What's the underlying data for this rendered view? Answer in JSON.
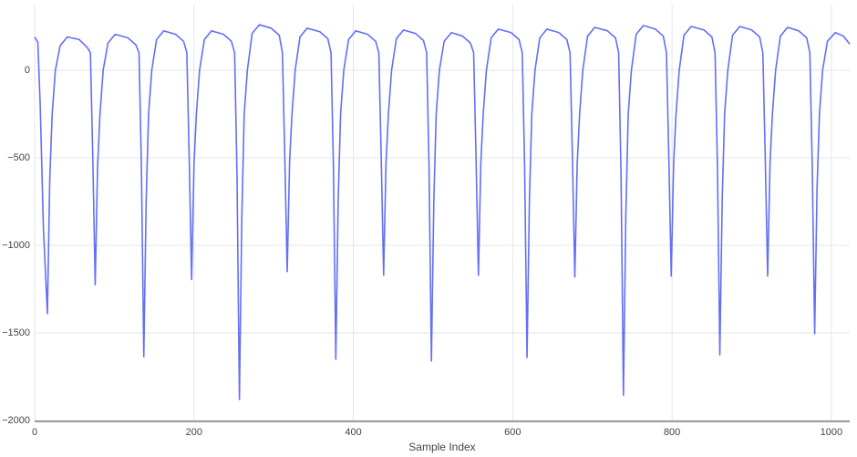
{
  "chart_data": {
    "type": "line",
    "xlabel": "Sample Index",
    "color": "#636efa",
    "grid": true,
    "xlim": [
      0,
      1023
    ],
    "ylim": [
      -2005,
      375
    ],
    "xticks": [
      0,
      200,
      400,
      600,
      800,
      1000
    ],
    "yticks": [
      {
        "value": -2000,
        "label": "−2000"
      },
      {
        "value": -1500,
        "label": "−1500"
      },
      {
        "value": -1000,
        "label": "−1000"
      },
      {
        "value": -500,
        "label": "−500"
      },
      0
    ],
    "x": [
      0,
      4,
      7,
      11,
      16,
      19,
      22,
      26,
      32,
      41,
      56,
      66,
      70,
      73,
      76,
      79,
      82,
      86,
      92,
      101,
      117,
      127,
      131,
      134,
      137,
      140,
      143,
      147,
      153,
      162,
      177,
      187,
      191,
      194,
      197,
      200,
      203,
      207,
      213,
      222,
      237,
      247,
      251,
      254,
      257,
      260,
      263,
      267,
      273,
      282,
      297,
      307,
      311,
      314,
      317,
      320,
      323,
      327,
      333,
      342,
      358,
      368,
      372,
      375,
      378,
      381,
      384,
      388,
      394,
      403,
      418,
      428,
      432,
      435,
      438,
      441,
      444,
      448,
      454,
      463,
      478,
      488,
      492,
      495,
      498,
      501,
      504,
      508,
      514,
      523,
      537,
      547,
      551,
      554,
      557,
      560,
      563,
      567,
      573,
      582,
      598,
      608,
      612,
      615,
      618,
      621,
      624,
      628,
      634,
      643,
      658,
      668,
      672,
      675,
      678,
      681,
      684,
      688,
      694,
      703,
      719,
      729,
      733,
      736,
      739,
      742,
      745,
      749,
      755,
      764,
      779,
      789,
      793,
      796,
      799,
      802,
      805,
      809,
      815,
      824,
      840,
      850,
      854,
      857,
      860,
      863,
      866,
      870,
      876,
      885,
      900,
      910,
      914,
      917,
      920,
      923,
      926,
      930,
      936,
      945,
      959,
      969,
      973,
      976,
      979,
      982,
      985,
      989,
      995,
      1005,
      1015,
      1023
    ],
    "values": [
      190,
      160,
      -200,
      -900,
      -1390,
      -620,
      -250,
      0,
      140,
      190,
      175,
      130,
      100,
      -500,
      -1225,
      -550,
      -250,
      0,
      155,
      205,
      185,
      145,
      100,
      -550,
      -1635,
      -740,
      -250,
      0,
      175,
      225,
      205,
      165,
      100,
      -500,
      -1195,
      -540,
      -250,
      0,
      175,
      225,
      205,
      165,
      100,
      -600,
      -1880,
      -850,
      -250,
      0,
      210,
      260,
      240,
      200,
      100,
      -500,
      -1150,
      -520,
      -250,
      0,
      190,
      240,
      220,
      180,
      100,
      -550,
      -1650,
      -740,
      -250,
      0,
      175,
      225,
      205,
      165,
      100,
      -500,
      -1170,
      -530,
      -250,
      0,
      180,
      230,
      210,
      170,
      100,
      -550,
      -1660,
      -750,
      -250,
      0,
      165,
      215,
      195,
      155,
      100,
      -500,
      -1170,
      -530,
      -250,
      0,
      185,
      235,
      215,
      175,
      100,
      -550,
      -1640,
      -740,
      -250,
      0,
      185,
      235,
      215,
      175,
      100,
      -500,
      -1180,
      -530,
      -250,
      0,
      195,
      245,
      225,
      185,
      100,
      -600,
      -1855,
      -830,
      -250,
      0,
      205,
      255,
      235,
      195,
      100,
      -500,
      -1175,
      -530,
      -250,
      0,
      200,
      250,
      230,
      190,
      100,
      -550,
      -1625,
      -730,
      -250,
      0,
      200,
      250,
      230,
      190,
      100,
      -500,
      -1175,
      -530,
      -250,
      0,
      195,
      245,
      225,
      185,
      100,
      -550,
      -1505,
      -680,
      -250,
      0,
      165,
      215,
      195,
      150
    ]
  }
}
